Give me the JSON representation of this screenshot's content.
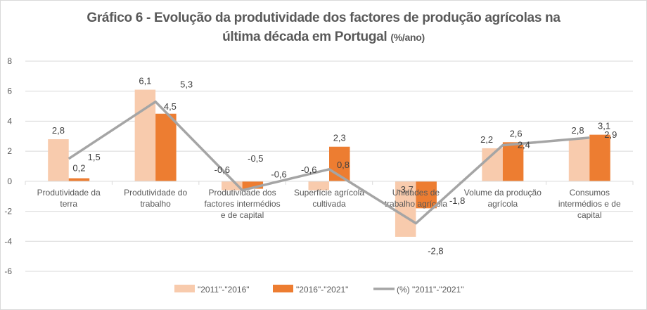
{
  "chart_data": {
    "type": "bar",
    "title_main": "Gráfico 6 - Evolução da produtividade dos factores de produção agrícolas na",
    "title_line2": "última década em Portugal",
    "title_unit": "(%/ano)",
    "xlabel": "",
    "ylabel": "",
    "ylim": [
      -6,
      8
    ],
    "yticks": [
      8,
      6,
      4,
      2,
      0,
      -2,
      -4,
      -6
    ],
    "ytick_labels": [
      "8",
      "6",
      "4",
      "2",
      "0",
      "-2",
      "-4",
      "-6"
    ],
    "grid": true,
    "legend_position": "bottom",
    "categories": [
      [
        "Produtividade da",
        "terra"
      ],
      [
        "Produtividade do",
        "trabalho"
      ],
      [
        "Produtividade dos",
        "factores intermédios",
        "e de capital"
      ],
      [
        "Superfície agrícola",
        "cultivada"
      ],
      [
        "Unidades de",
        "trabalho agrícola"
      ],
      [
        "Volume da produção",
        "agrícola"
      ],
      [
        "Consumos",
        "intermédios e de",
        "capital"
      ]
    ],
    "series": [
      {
        "name": "\"2011\"-\"2016\"",
        "type": "bar",
        "color": "#F8CBAD",
        "values": [
          2.8,
          6.1,
          -0.6,
          -0.6,
          -3.7,
          2.2,
          2.8
        ],
        "labels": [
          "2,8",
          "6,1",
          "-0,6",
          "-0,6",
          "-3,7",
          "2,2",
          "2,8"
        ]
      },
      {
        "name": "\"2016\"-\"2021\"",
        "type": "bar",
        "color": "#ED7D31",
        "values": [
          0.2,
          4.5,
          -0.5,
          2.3,
          -1.8,
          2.6,
          3.1
        ],
        "labels": [
          "0,2",
          "4,5",
          "-0,5",
          "2,3",
          "-1,8",
          "2,6",
          "3,1"
        ]
      },
      {
        "name": "(%) \"2011\"-\"2021\"",
        "type": "line",
        "color": "#A5A5A5",
        "values": [
          1.5,
          5.3,
          -0.6,
          0.8,
          -2.8,
          2.4,
          2.9
        ],
        "labels": [
          "1,5",
          "5,3",
          "-0,6",
          "0,8",
          "-2,8",
          "2,4",
          "2,9"
        ]
      }
    ]
  }
}
